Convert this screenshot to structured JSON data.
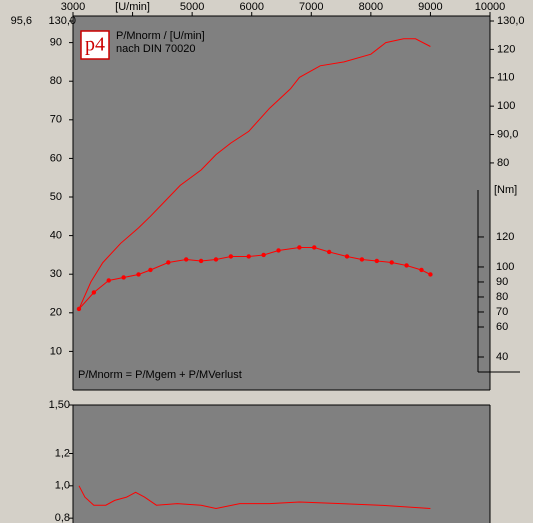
{
  "logo": "p4",
  "chart_data": [
    {
      "type": "line",
      "title": "P/Mnorm / [U/min]",
      "subtitle": "nach DIN 70020",
      "annotation": "P/Mnorm = P/Mgem + P/MVerlust",
      "xlim": [
        3000,
        10000
      ],
      "xticks": [
        3000,
        {
          "value": 4000,
          "label": "[U/min]"
        },
        5000,
        6000,
        7000,
        8000,
        9000,
        10000
      ],
      "ylim": [
        0,
        95.6
      ],
      "yticks": [
        {
          "value": 95.6,
          "label": "95,6"
        },
        90,
        80,
        70,
        60,
        50,
        40,
        30,
        20,
        10
      ],
      "y2lim": [
        0,
        130
      ],
      "y2ticks": [
        {
          "value": 130,
          "label": "130,0"
        },
        120,
        110,
        100,
        {
          "value": 90,
          "label": "90,0"
        },
        80
      ],
      "y3label": "[Nm]",
      "y3lim": [
        30,
        151.3
      ],
      "y3ticks": [
        120,
        100,
        90,
        80,
        70,
        60,
        40
      ],
      "series": [
        {
          "color": "#ff0000",
          "x": [
            3100,
            3300,
            3500,
            3800,
            4100,
            4300,
            4550,
            4800,
            5150,
            5400,
            5650,
            5950,
            6300,
            6650,
            6800,
            7150,
            7550,
            8000,
            8250,
            8550,
            8750,
            9000
          ],
          "values": [
            21,
            28,
            33,
            38,
            42,
            45,
            49,
            53,
            57,
            61,
            64,
            67,
            73,
            78,
            81,
            84,
            85,
            87,
            90,
            91,
            91,
            89
          ]
        },
        {
          "color": "#ff0000",
          "axis": "y3",
          "markers": true,
          "x": [
            3100,
            3350,
            3600,
            3850,
            4100,
            4300,
            4600,
            4900,
            5150,
            5400,
            5650,
            5950,
            6200,
            6450,
            6800,
            7050,
            7300,
            7600,
            7850,
            8100,
            8350,
            8600,
            8850,
            9000
          ],
          "values": [
            72,
            83,
            91,
            93,
            95,
            98,
            103,
            105,
            104,
            105,
            107,
            107,
            108,
            111,
            113,
            113,
            110,
            107,
            105,
            104,
            103,
            101,
            98,
            95
          ]
        }
      ]
    },
    {
      "type": "line",
      "xlim": [
        3000,
        10000
      ],
      "ylim": [
        0.77,
        1.5
      ],
      "yticks": [
        {
          "value": 1.5,
          "label": "1,50"
        },
        {
          "value": 1.2,
          "label": "1,2"
        },
        {
          "value": 1.0,
          "label": "1,0"
        },
        {
          "value": 0.8,
          "label": "0,8"
        }
      ],
      "series": [
        {
          "color": "#ff0000",
          "x": [
            3100,
            3200,
            3350,
            3550,
            3700,
            3900,
            4050,
            4200,
            4400,
            4750,
            5150,
            5400,
            5800,
            6300,
            6800,
            7500,
            8150,
            9000
          ],
          "values": [
            1.0,
            0.93,
            0.88,
            0.88,
            0.91,
            0.93,
            0.96,
            0.93,
            0.88,
            0.89,
            0.88,
            0.86,
            0.89,
            0.89,
            0.9,
            0.89,
            0.88,
            0.86
          ]
        }
      ]
    }
  ]
}
